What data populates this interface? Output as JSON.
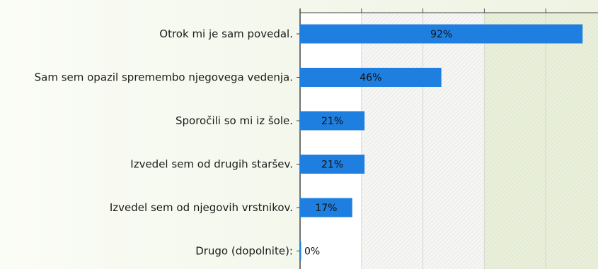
{
  "chart_data": {
    "type": "bar",
    "orientation": "horizontal",
    "categories": [
      "Otrok mi je sam povedal.",
      "Sam sem opazil spremembo njegovega vedenja.",
      "Sporočili so mi iz šole.",
      "Izvedel sem od drugih staršev.",
      "Izvedel sem od njegovih vrstnikov.",
      "Drugo (dopolnite):"
    ],
    "values": [
      92,
      46,
      21,
      21,
      17,
      0
    ],
    "value_labels": [
      "92%",
      "46%",
      "21%",
      "21%",
      "17%",
      "0%"
    ],
    "xlim": [
      0,
      100
    ],
    "x_gridlines": [
      0,
      20,
      40,
      60,
      80,
      100
    ],
    "bar_color": "#1e7fe0",
    "title": "",
    "xlabel": "",
    "ylabel": ""
  }
}
